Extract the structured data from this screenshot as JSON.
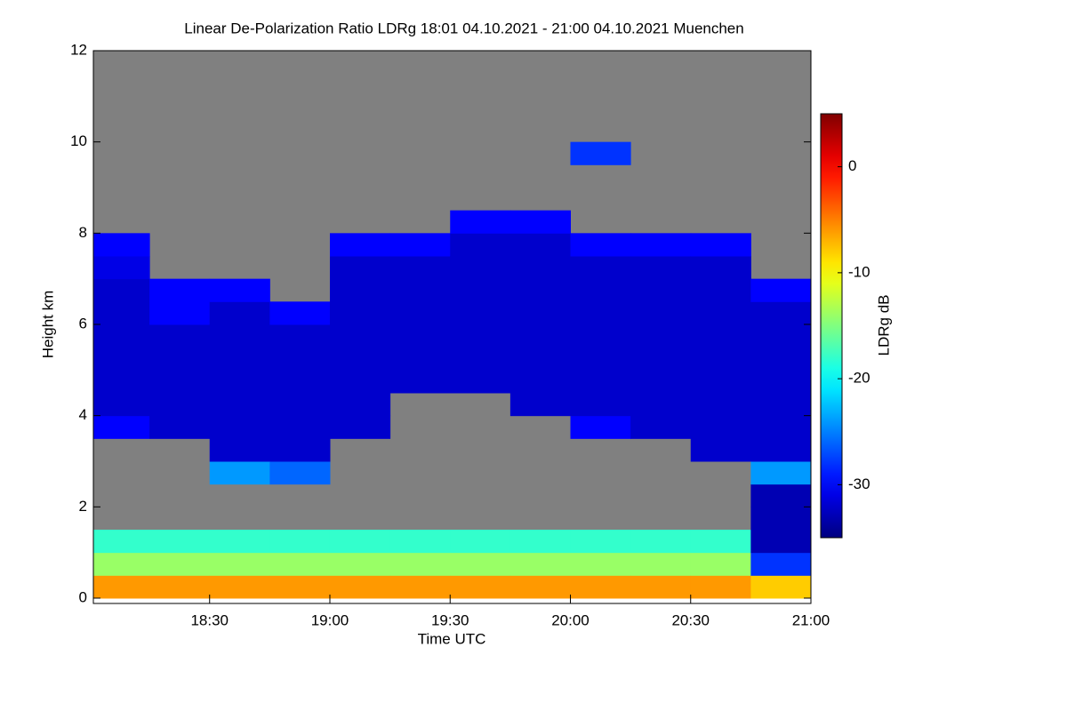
{
  "chart_data": {
    "type": "heatmap",
    "title": "Linear De-Polarization Ratio LDRg   18:01 04.10.2021 - 21:00 04.10.2021 Muenchen",
    "xlabel": "Time UTC",
    "ylabel": "Height km",
    "zlabel": "LDRg dB",
    "xlim": [
      18.0167,
      21.0
    ],
    "xticks": [
      {
        "value": 18.5,
        "label": "18:30"
      },
      {
        "value": 19.0,
        "label": "19:00"
      },
      {
        "value": 19.5,
        "label": "19:30"
      },
      {
        "value": 20.0,
        "label": "20:00"
      },
      {
        "value": 20.5,
        "label": "20:30"
      },
      {
        "value": 21.0,
        "label": "21:00"
      }
    ],
    "ylim": [
      0,
      12
    ],
    "yticks": [
      0,
      2,
      4,
      6,
      8,
      10,
      12
    ],
    "zlim": [
      -35,
      5
    ],
    "zticks": [
      -30,
      -20,
      -10,
      0
    ],
    "colormap": "jet",
    "background": "#808080",
    "xbins": [
      18.0167,
      18.25,
      18.5,
      18.75,
      19.0,
      19.25,
      19.5,
      19.75,
      20.0,
      20.25,
      20.5,
      20.75,
      21.0
    ],
    "ybins": [
      0,
      0.5,
      1,
      1.5,
      2,
      2.5,
      3,
      3.5,
      4,
      4.5,
      5,
      5.5,
      6,
      6.5,
      7,
      7.5,
      8,
      8.5,
      9,
      9.5,
      10,
      10.5,
      11,
      11.5,
      12
    ],
    "z": [
      [
        -6,
        -14,
        -18,
        null,
        null,
        null,
        null,
        -30,
        -32,
        -32,
        -32,
        -32,
        -32,
        -32,
        -31,
        -30,
        null,
        null,
        null,
        null,
        null,
        null,
        null,
        null
      ],
      [
        -6,
        -14,
        -18,
        null,
        null,
        null,
        null,
        -32,
        -32,
        -32,
        -32,
        -32,
        -30,
        -30,
        null,
        null,
        null,
        null,
        null,
        null,
        null,
        null,
        null,
        null
      ],
      [
        -6,
        -14,
        -18,
        null,
        null,
        -24,
        -32,
        -32,
        -32,
        -32,
        -32,
        -32,
        -32,
        -30,
        null,
        null,
        null,
        null,
        null,
        null,
        null,
        null,
        null,
        null
      ],
      [
        -6,
        -14,
        -18,
        null,
        null,
        -26,
        -32,
        -32,
        -32,
        -32,
        -32,
        -32,
        -30,
        null,
        null,
        null,
        null,
        null,
        null,
        null,
        null,
        null,
        null,
        null
      ],
      [
        -6,
        -14,
        -18,
        null,
        null,
        null,
        null,
        -32,
        -32,
        -32,
        -32,
        -32,
        -32,
        -32,
        -32,
        -30,
        null,
        null,
        null,
        null,
        null,
        null,
        null,
        null
      ],
      [
        -6,
        -14,
        -18,
        null,
        null,
        null,
        null,
        null,
        null,
        -32,
        -32,
        -32,
        -32,
        -32,
        -32,
        -30,
        null,
        null,
        null,
        null,
        null,
        null,
        null,
        null
      ],
      [
        -6,
        -14,
        -18,
        null,
        null,
        null,
        null,
        null,
        null,
        -32,
        -32,
        -32,
        -32,
        -32,
        -32,
        -32,
        -30,
        null,
        null,
        null,
        null,
        null,
        null,
        null
      ],
      [
        -6,
        -14,
        -18,
        null,
        null,
        null,
        null,
        null,
        -32,
        -32,
        -32,
        -32,
        -32,
        -32,
        -32,
        -32,
        -30,
        null,
        null,
        null,
        null,
        null,
        null,
        null
      ],
      [
        -6,
        -14,
        -18,
        null,
        null,
        null,
        null,
        -30,
        -32,
        -32,
        -32,
        -32,
        -32,
        -32,
        -32,
        -30,
        null,
        null,
        null,
        -28,
        null,
        null,
        null,
        null
      ],
      [
        -6,
        -14,
        -18,
        null,
        null,
        null,
        null,
        -32,
        -32,
        -32,
        -32,
        -32,
        -32,
        -32,
        -32,
        -30,
        null,
        null,
        null,
        null,
        null,
        null,
        null,
        null
      ],
      [
        -6,
        -14,
        -18,
        null,
        null,
        null,
        -32,
        -32,
        -32,
        -32,
        -32,
        -32,
        -32,
        -32,
        -32,
        -30,
        null,
        null,
        null,
        null,
        null,
        null,
        null,
        null
      ],
      [
        -8,
        -28,
        -33,
        -33,
        -33,
        -24,
        -32,
        -32,
        -32,
        -32,
        -32,
        -32,
        -32,
        -30,
        null,
        null,
        null,
        null,
        null,
        null,
        null,
        null,
        null,
        null
      ]
    ]
  }
}
